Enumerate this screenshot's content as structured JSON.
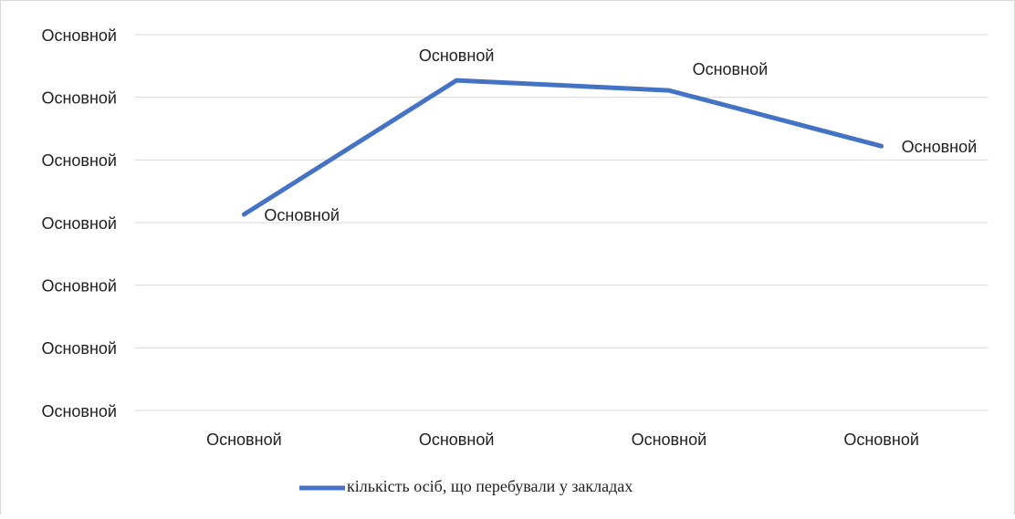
{
  "chart_data": {
    "type": "line",
    "categories": [
      "Основной",
      "Основной",
      "Основной",
      "Основной"
    ],
    "series": [
      {
        "name": "кількість осіб, що перебували у закладах",
        "color": "#4472c4",
        "values": [
          3.13,
          5.27,
          5.11,
          4.22
        ],
        "value_labels": [
          "Основной",
          "Основной",
          "Основной",
          "Основной"
        ]
      }
    ],
    "ylim": [
      0,
      6
    ],
    "yticks": [
      {
        "value": 0,
        "label": "Основной"
      },
      {
        "value": 1,
        "label": "Основной"
      },
      {
        "value": 2,
        "label": "Основной"
      },
      {
        "value": 3,
        "label": "Основной"
      },
      {
        "value": 4,
        "label": "Основной"
      },
      {
        "value": 5,
        "label": "Основной"
      },
      {
        "value": 6,
        "label": "Основной"
      }
    ],
    "grid": true,
    "legend": "bottom"
  }
}
